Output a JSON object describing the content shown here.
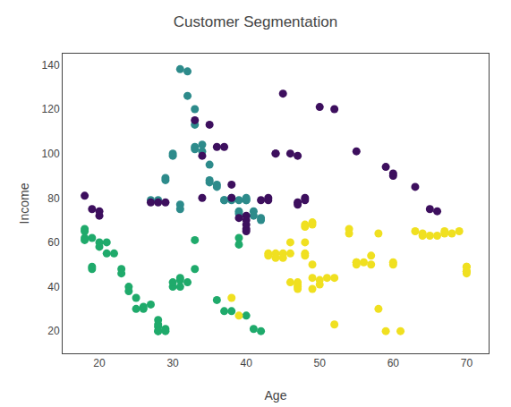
{
  "chart_data": {
    "type": "scatter",
    "title": "Customer Segmentation",
    "xlabel": "Age",
    "ylabel": "Income",
    "xlim": [
      15,
      73
    ],
    "ylim": [
      10,
      145
    ],
    "xticks": [
      20,
      30,
      40,
      50,
      60,
      70
    ],
    "yticks": [
      20,
      40,
      60,
      80,
      100,
      120,
      140
    ],
    "grid": false,
    "series": [
      {
        "color": "#2d8b8b",
        "x": [
          27,
          28,
          29,
          29,
          30,
          30,
          31,
          32,
          31,
          31,
          32,
          33,
          33,
          33,
          33,
          34,
          34,
          35,
          35,
          35,
          36,
          36,
          37,
          37,
          38,
          38,
          39,
          39,
          39,
          40,
          40,
          40,
          41,
          41,
          42,
          42
        ],
        "values": [
          79,
          79,
          88,
          89,
          100,
          99,
          138,
          137,
          77,
          75,
          126,
          120,
          113,
          102,
          103,
          101,
          104,
          95,
          87,
          88,
          86,
          85,
          79,
          79,
          80,
          79,
          79,
          74,
          73,
          79,
          79,
          80,
          74,
          72,
          71,
          70
        ]
      },
      {
        "color": "#3d0f5e",
        "x": [
          18,
          19,
          20,
          20,
          27,
          28,
          29,
          33,
          34,
          34,
          35,
          36,
          37,
          38,
          38,
          39,
          40,
          40,
          40,
          40,
          40,
          42,
          43,
          43,
          44,
          44,
          45,
          46,
          47,
          47,
          47,
          48,
          48,
          50,
          52,
          55,
          59,
          60,
          60,
          63,
          65,
          66
        ],
        "values": [
          81,
          75,
          74,
          72,
          78,
          78,
          78,
          115,
          99,
          80,
          113,
          103,
          103,
          86,
          80,
          71,
          72,
          70,
          68,
          66,
          65,
          79,
          80,
          79,
          100,
          100,
          127,
          100,
          99,
          78,
          77,
          80,
          79,
          121,
          120,
          101,
          94,
          91,
          90,
          85,
          75,
          74
        ]
      },
      {
        "color": "#1faa6b",
        "x": [
          18,
          18,
          18,
          18,
          19,
          19,
          19,
          20,
          20,
          21,
          21,
          22,
          23,
          23,
          24,
          24,
          25,
          25,
          26,
          26,
          27,
          28,
          28,
          28,
          28,
          28,
          29,
          29,
          30,
          30,
          31,
          31,
          31,
          32,
          33,
          33,
          36,
          37,
          38,
          39,
          39,
          40,
          41,
          42
        ],
        "values": [
          65,
          66,
          62,
          61,
          62,
          49,
          48,
          60,
          58,
          60,
          55,
          55,
          48,
          46,
          40,
          38,
          35,
          30,
          31,
          30,
          32,
          25,
          23,
          22,
          20,
          20,
          21,
          20,
          40,
          42,
          44,
          43,
          40,
          42,
          48,
          61,
          34,
          29,
          29,
          62,
          59,
          27,
          21,
          20
        ]
      },
      {
        "color": "#f0e020",
        "x": [
          38,
          39,
          43,
          43,
          44,
          44,
          45,
          45,
          46,
          46,
          46,
          47,
          47,
          47,
          47,
          48,
          48,
          48,
          48,
          48,
          49,
          49,
          49,
          49,
          49,
          50,
          50,
          51,
          52,
          52,
          54,
          54,
          55,
          55,
          55,
          56,
          57,
          57,
          58,
          58,
          59,
          60,
          60,
          61,
          63,
          64,
          64,
          65,
          66,
          67,
          67,
          68,
          69,
          70,
          70,
          70,
          70,
          70
        ],
        "values": [
          35,
          27,
          55,
          54,
          55,
          53,
          55,
          53,
          60,
          55,
          42,
          42,
          41,
          40,
          39,
          68,
          67,
          60,
          55,
          54,
          69,
          68,
          50,
          44,
          39,
          43,
          41,
          44,
          44,
          23,
          66,
          64,
          51,
          50,
          51,
          51,
          54,
          50,
          64,
          30,
          20,
          51,
          50,
          20,
          65,
          64,
          63,
          63,
          63,
          64,
          65,
          64,
          65,
          49,
          49,
          47,
          47,
          46
        ]
      }
    ]
  }
}
